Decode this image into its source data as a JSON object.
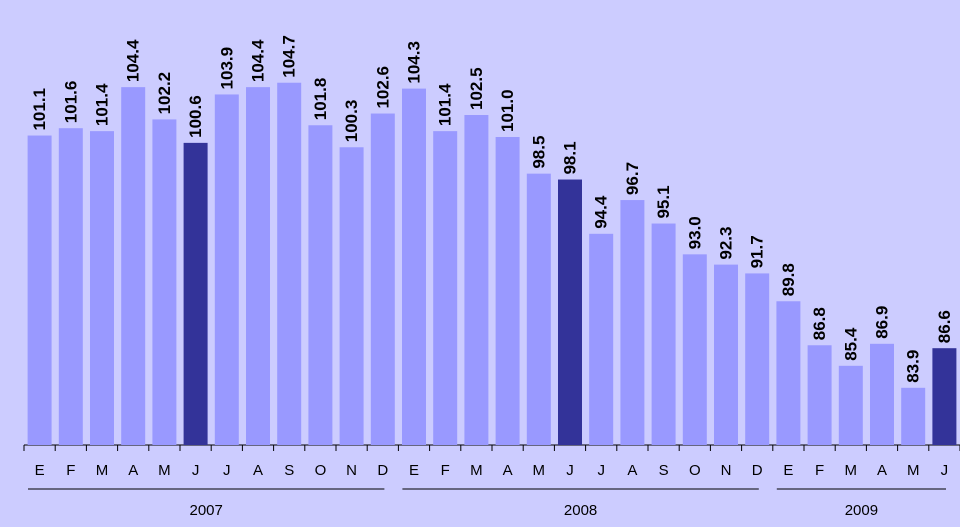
{
  "chart_data": {
    "type": "bar",
    "categories": [
      "E",
      "F",
      "M",
      "A",
      "M",
      "J",
      "J",
      "A",
      "S",
      "O",
      "N",
      "D",
      "E",
      "F",
      "M",
      "A",
      "M",
      "J",
      "J",
      "A",
      "S",
      "O",
      "N",
      "D",
      "E",
      "F",
      "M",
      "A",
      "M",
      "J"
    ],
    "groups": [
      "2007",
      "2008",
      "2009"
    ],
    "values": [
      101.1,
      101.6,
      101.4,
      104.4,
      102.2,
      100.6,
      103.9,
      104.4,
      104.7,
      101.8,
      100.3,
      102.6,
      104.3,
      101.4,
      102.5,
      101.0,
      98.5,
      98.1,
      94.4,
      96.7,
      95.1,
      93.0,
      92.3,
      91.7,
      89.8,
      86.8,
      85.4,
      86.9,
      83.9,
      86.6
    ],
    "value_labels": [
      "101.1",
      "101.6",
      "101.4",
      "104.4",
      "102.2",
      "100.6",
      "103.9",
      "104.4",
      "104.7",
      "101.8",
      "100.3",
      "102.6",
      "104.3",
      "101.4",
      "102.5",
      "101.0",
      "98.5",
      "98.1",
      "94.4",
      "96.7",
      "95.1",
      "93.0",
      "92.3",
      "91.7",
      "89.8",
      "86.8",
      "85.4",
      "86.9",
      "83.9",
      "86.6"
    ],
    "colors": [
      "#9999ff",
      "#9999ff",
      "#9999ff",
      "#9999ff",
      "#9999ff",
      "#333399",
      "#9999ff",
      "#9999ff",
      "#9999ff",
      "#9999ff",
      "#9999ff",
      "#9999ff",
      "#9999ff",
      "#9999ff",
      "#9999ff",
      "#9999ff",
      "#9999ff",
      "#333399",
      "#9999ff",
      "#9999ff",
      "#9999ff",
      "#9999ff",
      "#9999ff",
      "#9999ff",
      "#9999ff",
      "#9999ff",
      "#9999ff",
      "#9999ff",
      "#9999ff",
      "#333399"
    ],
    "ylim": [
      80,
      110
    ]
  }
}
